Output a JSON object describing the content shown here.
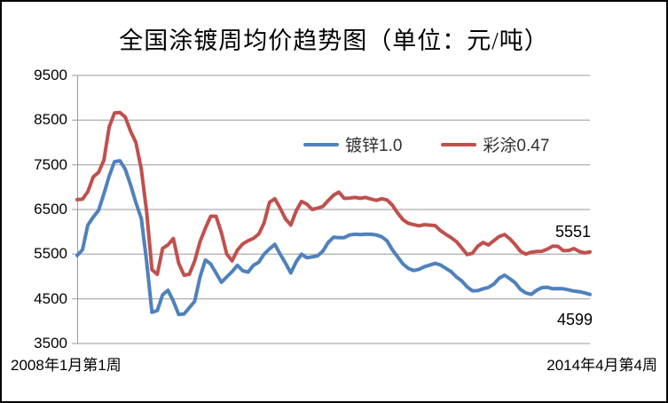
{
  "chart_data": {
    "type": "line",
    "title": "全国涂镀周均价趋势图（单位：元/吨）",
    "x_axis": {
      "start_label": "2008年1月第1周",
      "end_label": "2014年4月第4周"
    },
    "y_ticks": [
      9500,
      8500,
      7500,
      6500,
      5500,
      4500,
      3500
    ],
    "ylim": [
      3500,
      9500
    ],
    "grid": true,
    "legend_position": "inside-upper-middle",
    "colors": {
      "gridline": "#9a9a9a",
      "axis": "#9a9a9a",
      "text": "#000000",
      "background": "#ffffff"
    },
    "series": [
      {
        "name": "镀锌1.0",
        "color": "#4F81BD",
        "end_label": "4599",
        "final_value": 4599,
        "values": [
          5470,
          5600,
          6150,
          6330,
          6480,
          6850,
          7250,
          7570,
          7590,
          7400,
          7050,
          6650,
          6300,
          5330,
          4200,
          4240,
          4590,
          4690,
          4450,
          4150,
          4160,
          4300,
          4450,
          4990,
          5370,
          5280,
          5080,
          4870,
          4990,
          5110,
          5250,
          5130,
          5100,
          5250,
          5320,
          5500,
          5620,
          5720,
          5500,
          5300,
          5080,
          5330,
          5500,
          5420,
          5440,
          5460,
          5570,
          5760,
          5880,
          5870,
          5870,
          5930,
          5945,
          5940,
          5945,
          5945,
          5930,
          5890,
          5800,
          5600,
          5440,
          5280,
          5180,
          5135,
          5160,
          5220,
          5255,
          5295,
          5260,
          5185,
          5110,
          4990,
          4900,
          4770,
          4680,
          4685,
          4725,
          4755,
          4830,
          4960,
          5030,
          4950,
          4860,
          4710,
          4630,
          4600,
          4690,
          4750,
          4760,
          4725,
          4730,
          4725,
          4700,
          4675,
          4660,
          4635,
          4599
        ]
      },
      {
        "name": "彩涂0.47",
        "color": "#C0504D",
        "end_label": "5551",
        "final_value": 5551,
        "values": [
          6720,
          6730,
          6900,
          7230,
          7330,
          7600,
          8350,
          8660,
          8670,
          8570,
          8250,
          8000,
          7400,
          6450,
          5150,
          5050,
          5630,
          5710,
          5850,
          5300,
          5030,
          5050,
          5350,
          5780,
          6080,
          6350,
          6350,
          5980,
          5500,
          5350,
          5590,
          5730,
          5800,
          5855,
          5950,
          6200,
          6660,
          6740,
          6530,
          6290,
          6150,
          6470,
          6680,
          6620,
          6500,
          6530,
          6570,
          6700,
          6820,
          6890,
          6750,
          6755,
          6770,
          6750,
          6770,
          6735,
          6705,
          6740,
          6715,
          6600,
          6420,
          6270,
          6190,
          6160,
          6135,
          6160,
          6150,
          6140,
          6030,
          5945,
          5870,
          5780,
          5640,
          5490,
          5520,
          5680,
          5760,
          5705,
          5800,
          5895,
          5940,
          5845,
          5715,
          5565,
          5500,
          5545,
          5560,
          5565,
          5610,
          5680,
          5675,
          5580,
          5580,
          5625,
          5560,
          5530,
          5551
        ]
      }
    ]
  }
}
